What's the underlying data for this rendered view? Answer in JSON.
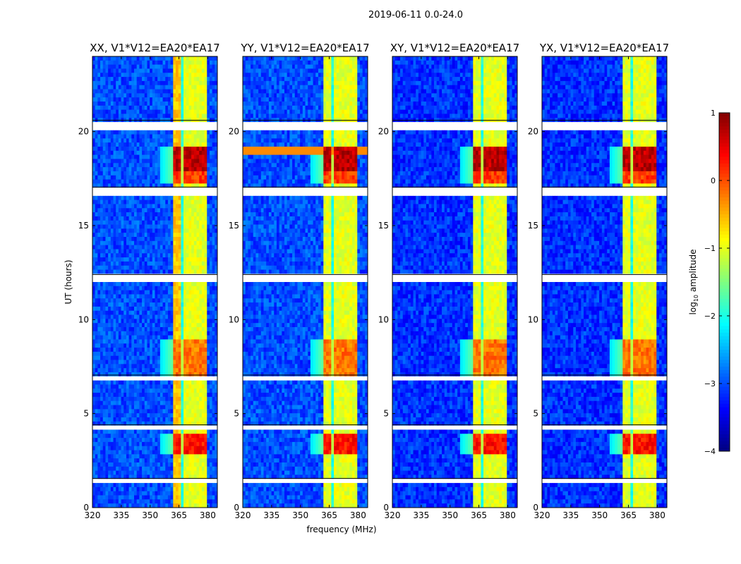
{
  "chart_data": {
    "type": "heatmap",
    "suptitle": "2019-06-11 0.0-24.0",
    "xlabel": "frequency (MHz)",
    "ylabel": "UT (hours)",
    "xlim": [
      320,
      385
    ],
    "ylim": [
      0,
      24
    ],
    "xticks": [
      "320",
      "335",
      "350",
      "365",
      "380"
    ],
    "xtick_values": [
      320,
      335,
      350,
      365,
      380
    ],
    "yticks": [
      "0",
      "5",
      "10",
      "15",
      "20"
    ],
    "ytick_values": [
      0,
      5,
      10,
      15,
      20
    ],
    "panels": [
      {
        "title": "XX, V1*V12=EA20*EA17"
      },
      {
        "title": "YY, V1*V12=EA20*EA17"
      },
      {
        "title": "XY, V1*V12=EA20*EA17"
      },
      {
        "title": "YX, V1*V12=EA20*EA17"
      }
    ],
    "colorbar": {
      "label": "log10 amplitude",
      "label_main": "log",
      "label_sub": "10",
      "label_rest": " amplitude",
      "range": [
        -4,
        1
      ],
      "ticks": [
        "1",
        "0",
        "−1",
        "−2",
        "−3",
        "−4"
      ],
      "tick_values": [
        1,
        0,
        -1,
        -2,
        -3,
        -4
      ],
      "colormap": "jet"
    },
    "background_level": -3,
    "rfi_band_mhz": [
      362,
      380
    ],
    "rfi_channels_mhz": [
      [
        362,
        366
      ],
      [
        367,
        371
      ],
      [
        372,
        375.5
      ],
      [
        376,
        379.5
      ]
    ],
    "rfi_channel_level": -1,
    "bursts": [
      {
        "ut": [
          18.0,
          19.3
        ],
        "level": 0.7
      },
      {
        "ut": [
          17.3,
          18.0
        ],
        "level": 0.1
      },
      {
        "ut": [
          7.0,
          9.0
        ],
        "level": -0.2
      },
      {
        "ut": [
          2.8,
          4.0
        ],
        "level": 0.3
      }
    ],
    "flagged_ut": [
      [
        1.4,
        1.55
      ],
      [
        4.1,
        4.4
      ],
      [
        6.85,
        7.05
      ],
      [
        11.9,
        12.4
      ],
      [
        16.55,
        17.05
      ],
      [
        20.15,
        20.6
      ]
    ]
  }
}
